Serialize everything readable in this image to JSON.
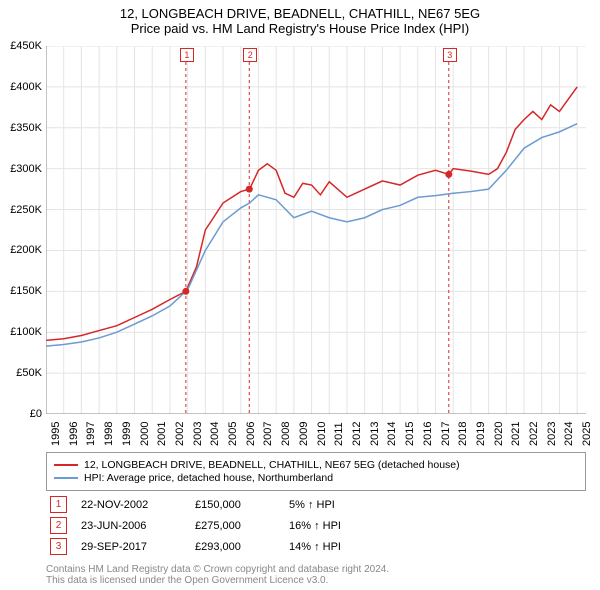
{
  "titles": {
    "main": "12, LONGBEACH DRIVE, BEADNELL, CHATHILL, NE67 5EG",
    "sub": "Price paid vs. HM Land Registry's House Price Index (HPI)",
    "title_fontsize": 13
  },
  "chart": {
    "type": "line",
    "background_color": "#ffffff",
    "grid_color": "#e4e4e4",
    "xaxis": {
      "min": 1995,
      "max": 2025.5,
      "ticks": [
        1995,
        1996,
        1997,
        1998,
        1999,
        2000,
        2001,
        2002,
        2003,
        2004,
        2005,
        2006,
        2007,
        2008,
        2009,
        2010,
        2011,
        2012,
        2013,
        2014,
        2015,
        2016,
        2017,
        2018,
        2019,
        2020,
        2021,
        2022,
        2023,
        2024,
        2025
      ],
      "label_fontsize": 11
    },
    "yaxis": {
      "min": 0,
      "max": 450000,
      "ticks": [
        0,
        50000,
        100000,
        150000,
        200000,
        250000,
        300000,
        350000,
        400000,
        450000
      ],
      "tick_labels": [
        "£0",
        "£50K",
        "£100K",
        "£150K",
        "£200K",
        "£250K",
        "£300K",
        "£350K",
        "£400K",
        "£450K"
      ],
      "label_fontsize": 11
    },
    "series": [
      {
        "id": "subject",
        "color": "#d62728",
        "line_width": 1.5,
        "points": [
          [
            1995,
            90000
          ],
          [
            1996,
            92000
          ],
          [
            1997,
            96000
          ],
          [
            1998,
            102000
          ],
          [
            1999,
            108000
          ],
          [
            2000,
            118000
          ],
          [
            2001,
            128000
          ],
          [
            2002,
            140000
          ],
          [
            2002.9,
            150000
          ],
          [
            2003.5,
            180000
          ],
          [
            2004,
            225000
          ],
          [
            2005,
            258000
          ],
          [
            2006,
            272000
          ],
          [
            2006.5,
            275000
          ],
          [
            2007,
            298000
          ],
          [
            2007.5,
            306000
          ],
          [
            2008,
            298000
          ],
          [
            2008.5,
            270000
          ],
          [
            2009,
            265000
          ],
          [
            2009.5,
            282000
          ],
          [
            2010,
            280000
          ],
          [
            2010.5,
            268000
          ],
          [
            2011,
            284000
          ],
          [
            2012,
            265000
          ],
          [
            2013,
            275000
          ],
          [
            2014,
            285000
          ],
          [
            2015,
            280000
          ],
          [
            2016,
            292000
          ],
          [
            2017,
            298000
          ],
          [
            2017.75,
            293000
          ],
          [
            2018,
            300000
          ],
          [
            2019,
            297000
          ],
          [
            2020,
            293000
          ],
          [
            2020.5,
            300000
          ],
          [
            2021,
            320000
          ],
          [
            2021.5,
            348000
          ],
          [
            2022,
            360000
          ],
          [
            2022.5,
            370000
          ],
          [
            2023,
            360000
          ],
          [
            2023.5,
            378000
          ],
          [
            2024,
            370000
          ],
          [
            2024.5,
            385000
          ],
          [
            2025,
            400000
          ]
        ]
      },
      {
        "id": "hpi",
        "color": "#6b9bd1",
        "line_width": 1.5,
        "points": [
          [
            1995,
            83000
          ],
          [
            1996,
            85000
          ],
          [
            1997,
            88000
          ],
          [
            1998,
            93000
          ],
          [
            1999,
            100000
          ],
          [
            2000,
            110000
          ],
          [
            2001,
            120000
          ],
          [
            2002,
            132000
          ],
          [
            2003,
            152000
          ],
          [
            2004,
            200000
          ],
          [
            2005,
            235000
          ],
          [
            2006,
            252000
          ],
          [
            2006.5,
            258000
          ],
          [
            2007,
            268000
          ],
          [
            2008,
            262000
          ],
          [
            2009,
            240000
          ],
          [
            2010,
            248000
          ],
          [
            2011,
            240000
          ],
          [
            2012,
            235000
          ],
          [
            2013,
            240000
          ],
          [
            2014,
            250000
          ],
          [
            2015,
            255000
          ],
          [
            2016,
            265000
          ],
          [
            2017,
            267000
          ],
          [
            2018,
            270000
          ],
          [
            2019,
            272000
          ],
          [
            2020,
            275000
          ],
          [
            2021,
            298000
          ],
          [
            2022,
            325000
          ],
          [
            2023,
            338000
          ],
          [
            2024,
            345000
          ],
          [
            2025,
            355000
          ]
        ]
      }
    ],
    "event_markers": [
      {
        "num": "1",
        "year": 2002.9,
        "color": "#d62728"
      },
      {
        "num": "2",
        "year": 2006.48,
        "color": "#d62728"
      },
      {
        "num": "3",
        "year": 2017.75,
        "color": "#d62728"
      }
    ],
    "sale_points": [
      {
        "year": 2002.9,
        "price": 150000,
        "color": "#d62728"
      },
      {
        "year": 2006.48,
        "price": 275000,
        "color": "#d62728"
      },
      {
        "year": 2017.75,
        "price": 293000,
        "color": "#d62728"
      }
    ]
  },
  "legend": {
    "items": [
      {
        "color": "#d62728",
        "label": "12, LONGBEACH DRIVE, BEADNELL, CHATHILL, NE67 5EG (detached house)"
      },
      {
        "color": "#6b9bd1",
        "label": "HPI: Average price, detached house, Northumberland"
      }
    ]
  },
  "events": [
    {
      "num": "1",
      "color": "#d62728",
      "date": "22-NOV-2002",
      "price": "£150,000",
      "pct": "5% ↑ HPI"
    },
    {
      "num": "2",
      "color": "#d62728",
      "date": "23-JUN-2006",
      "price": "£275,000",
      "pct": "16% ↑ HPI"
    },
    {
      "num": "3",
      "color": "#d62728",
      "date": "29-SEP-2017",
      "price": "£293,000",
      "pct": "14% ↑ HPI"
    }
  ],
  "footer": {
    "line1": "Contains HM Land Registry data © Crown copyright and database right 2024.",
    "line2": "This data is licensed under the Open Government Licence v3.0."
  }
}
